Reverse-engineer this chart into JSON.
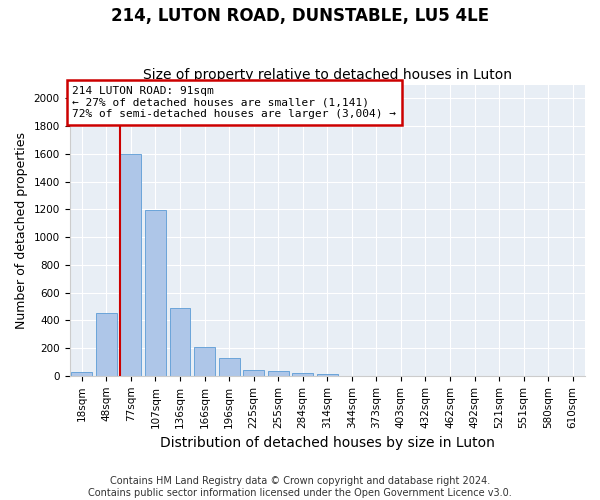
{
  "title": "214, LUTON ROAD, DUNSTABLE, LU5 4LE",
  "subtitle": "Size of property relative to detached houses in Luton",
  "xlabel": "Distribution of detached houses by size in Luton",
  "ylabel": "Number of detached properties",
  "footer_line1": "Contains HM Land Registry data © Crown copyright and database right 2024.",
  "footer_line2": "Contains public sector information licensed under the Open Government Licence v3.0.",
  "categories": [
    "18sqm",
    "48sqm",
    "77sqm",
    "107sqm",
    "136sqm",
    "166sqm",
    "196sqm",
    "225sqm",
    "255sqm",
    "284sqm",
    "314sqm",
    "344sqm",
    "373sqm",
    "403sqm",
    "432sqm",
    "462sqm",
    "492sqm",
    "521sqm",
    "551sqm",
    "580sqm",
    "610sqm"
  ],
  "values": [
    30,
    455,
    1600,
    1195,
    490,
    205,
    125,
    45,
    35,
    20,
    10,
    0,
    0,
    0,
    0,
    0,
    0,
    0,
    0,
    0,
    0
  ],
  "bar_color": "#aec6e8",
  "bar_edge_color": "#5b9bd5",
  "highlight_bar_index": 2,
  "highlight_line_color": "#cc0000",
  "annotation_line1": "214 LUTON ROAD: 91sqm",
  "annotation_line2": "← 27% of detached houses are smaller (1,141)",
  "annotation_line3": "72% of semi-detached houses are larger (3,004) →",
  "annotation_box_edge_color": "#cc0000",
  "ylim": [
    0,
    2100
  ],
  "yticks": [
    0,
    200,
    400,
    600,
    800,
    1000,
    1200,
    1400,
    1600,
    1800,
    2000
  ],
  "background_color": "#e8eef5",
  "title_fontsize": 12,
  "subtitle_fontsize": 10,
  "axis_label_fontsize": 9,
  "tick_fontsize": 7.5,
  "footer_fontsize": 7
}
